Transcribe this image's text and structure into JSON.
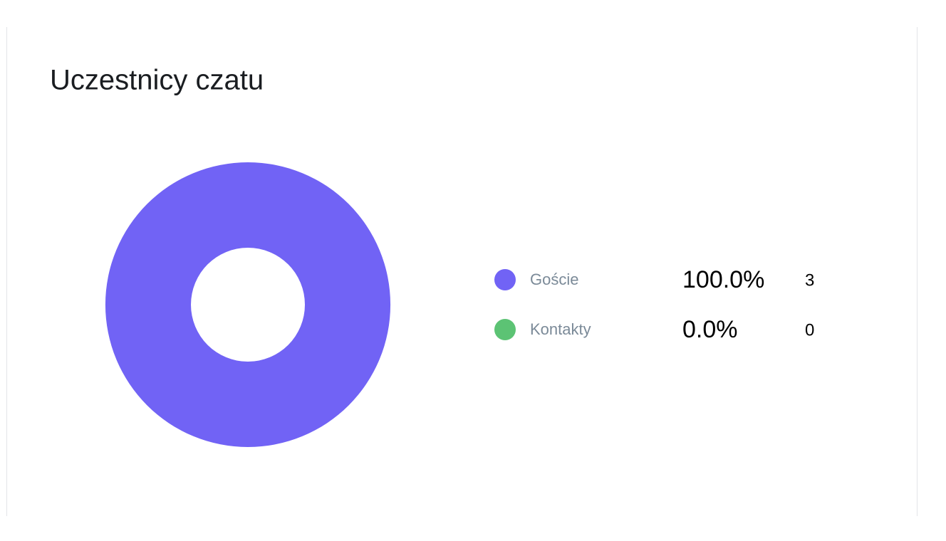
{
  "chart_data": {
    "type": "pie",
    "title": "Uczestnicy czatu",
    "categories": [
      "Goście",
      "Kontakty"
    ],
    "values": [
      100.0,
      0.0
    ],
    "value_labels": [
      "100.0%",
      "0.0%"
    ],
    "counts": [
      3,
      0
    ],
    "colors": [
      "#7163f5",
      "#5cc374"
    ]
  }
}
